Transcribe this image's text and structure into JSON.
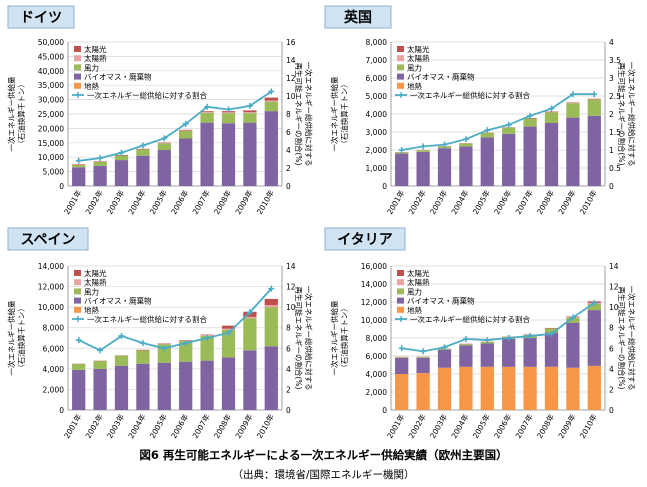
{
  "figure": {
    "title": "図6 再生可能エネルギーによる一次エネルギー供給実績（欧州主要国）",
    "source": "（出典：環境省/国際エネルギー機関）"
  },
  "colors": {
    "solar": "#c0504d",
    "solar_thermal": "#e6a5a3",
    "wind": "#9bbb59",
    "biomass": "#8064a2",
    "geothermal": "#f79646",
    "share_line": "#4bacc6",
    "grid": "#d9d9d9",
    "label_bg": "#d0e3f2"
  },
  "chart_data": [
    {
      "type": "bar",
      "title": "ドイツ",
      "ylabel": "一次エネルギー供給量\n（石油換算千トン）",
      "ylabel2": "一次エネルギー総供給に対する\n再生可能エネルギーの割合(%)",
      "categories": [
        "2001年",
        "2002年",
        "2003年",
        "2004年",
        "2005年",
        "2006年",
        "2007年",
        "2008年",
        "2009年",
        "2010年"
      ],
      "ylim": [
        0,
        50000
      ],
      "yticks": [
        0,
        5000,
        10000,
        15000,
        20000,
        25000,
        30000,
        35000,
        40000,
        45000,
        50000
      ],
      "y2lim": [
        0,
        16
      ],
      "y2ticks": [
        0,
        2,
        4,
        6,
        8,
        10,
        12,
        14,
        16
      ],
      "legend_position": "top-left",
      "series": [
        {
          "name": "地熱",
          "key": "geothermal",
          "values": [
            0,
            0,
            0,
            0,
            0,
            0,
            0,
            0,
            0,
            0
          ]
        },
        {
          "name": "バイオマス・廃棄物",
          "key": "biomass",
          "values": [
            6500,
            7000,
            9000,
            10500,
            12500,
            16500,
            22000,
            21800,
            22000,
            26000
          ]
        },
        {
          "name": "風力",
          "key": "wind",
          "values": [
            900,
            1400,
            1600,
            2200,
            2300,
            2600,
            3400,
            3500,
            3300,
            3300
          ]
        },
        {
          "name": "太陽熱",
          "key": "solar_thermal",
          "values": [
            100,
            120,
            140,
            160,
            180,
            200,
            250,
            300,
            350,
            400
          ]
        },
        {
          "name": "太陽光",
          "key": "solar",
          "values": [
            10,
            20,
            30,
            50,
            100,
            200,
            300,
            400,
            600,
            1000
          ]
        }
      ],
      "line": {
        "name": "一次エネルギー総供給に対する割合",
        "values": [
          2.8,
          3.1,
          3.7,
          4.5,
          5.3,
          6.9,
          8.8,
          8.5,
          8.9,
          10.5
        ]
      }
    },
    {
      "type": "bar",
      "title": "英国",
      "ylabel": "一次エネルギー供給量\n（石油換算千トン）",
      "ylabel2": "一次エネルギー総供給に対する\n再生可能エネルギーの割合(%)",
      "categories": [
        "2001年",
        "2002年",
        "2003年",
        "2004年",
        "2005年",
        "2006年",
        "2007年",
        "2008年",
        "2009年",
        "2010年"
      ],
      "ylim": [
        0,
        8000
      ],
      "yticks": [
        0,
        1000,
        2000,
        3000,
        4000,
        5000,
        6000,
        7000,
        8000
      ],
      "y2lim": [
        0,
        4
      ],
      "y2ticks": [
        0,
        0.5,
        1,
        1.5,
        2,
        2.5,
        3,
        3.5,
        4
      ],
      "legend_position": "top-left",
      "series": [
        {
          "name": "地熱",
          "key": "geothermal",
          "values": [
            0,
            0,
            0,
            0,
            0,
            0,
            0,
            0,
            0,
            0
          ]
        },
        {
          "name": "バイオマス・廃棄物",
          "key": "biomass",
          "values": [
            1800,
            1900,
            2100,
            2200,
            2700,
            2900,
            3300,
            3500,
            3800,
            3900
          ]
        },
        {
          "name": "風力",
          "key": "wind",
          "values": [
            80,
            100,
            110,
            170,
            250,
            350,
            450,
            600,
            800,
            900
          ]
        },
        {
          "name": "太陽熱",
          "key": "solar_thermal",
          "values": [
            10,
            10,
            10,
            15,
            20,
            20,
            25,
            30,
            35,
            40
          ]
        },
        {
          "name": "太陽光",
          "key": "solar",
          "values": [
            0,
            0,
            0,
            0,
            0,
            0,
            1,
            2,
            3,
            4
          ]
        }
      ],
      "line": {
        "name": "一次エネルギー総供給に対する割合",
        "values": [
          1.0,
          1.1,
          1.15,
          1.3,
          1.55,
          1.7,
          1.95,
          2.15,
          2.55,
          2.55
        ]
      }
    },
    {
      "type": "bar",
      "title": "スペイン",
      "ylabel": "一次エネルギー供給量\n（石油換算千トン）",
      "ylabel2": "一次エネルギー総供給に対する\n再生可能エネルギーの割合(%)",
      "categories": [
        "2001年",
        "2002年",
        "2003年",
        "2004年",
        "2005年",
        "2006年",
        "2007年",
        "2008年",
        "2009年",
        "2010年"
      ],
      "ylim": [
        0,
        14000
      ],
      "yticks": [
        0,
        2000,
        4000,
        6000,
        8000,
        10000,
        12000,
        14000
      ],
      "y2lim": [
        0,
        14
      ],
      "y2ticks": [
        0,
        2,
        4,
        6,
        8,
        10,
        12,
        14
      ],
      "legend_position": "top-left",
      "series": [
        {
          "name": "地熱",
          "key": "geothermal",
          "values": [
            0,
            0,
            0,
            0,
            0,
            0,
            0,
            0,
            0,
            0
          ]
        },
        {
          "name": "バイオマス・廃棄物",
          "key": "biomass",
          "values": [
            3900,
            4000,
            4300,
            4500,
            4600,
            4700,
            4800,
            5100,
            5800,
            6200
          ]
        },
        {
          "name": "風力",
          "key": "wind",
          "values": [
            600,
            800,
            1000,
            1300,
            1800,
            2000,
            2400,
            2700,
            3100,
            3800
          ]
        },
        {
          "name": "太陽熱",
          "key": "solar_thermal",
          "values": [
            20,
            20,
            30,
            40,
            50,
            60,
            80,
            100,
            150,
            200
          ]
        },
        {
          "name": "太陽光",
          "key": "solar",
          "values": [
            0,
            0,
            0,
            10,
            10,
            20,
            50,
            300,
            500,
            600
          ]
        }
      ],
      "line": {
        "name": "一次エネルギー総供給に対する割合",
        "values": [
          6.8,
          5.8,
          7.2,
          6.5,
          6.0,
          6.5,
          7.0,
          7.5,
          9.5,
          11.8
        ]
      }
    },
    {
      "type": "bar",
      "title": "イタリア",
      "ylabel": "一次エネルギー供給量\n（石油換算千トン）",
      "ylabel2": "一次エネルギー総供給に対する\n再生可能エネルギーの割合(%)",
      "categories": [
        "2001年",
        "2002年",
        "2003年",
        "2004年",
        "2005年",
        "2006年",
        "2007年",
        "2008年",
        "2009年",
        "2010年"
      ],
      "ylim": [
        0,
        16000
      ],
      "yticks": [
        0,
        2000,
        4000,
        6000,
        8000,
        10000,
        12000,
        14000,
        16000
      ],
      "y2lim": [
        0,
        14
      ],
      "y2ticks": [
        0,
        2,
        4,
        6,
        8,
        10,
        12,
        14
      ],
      "legend_position": "top-left",
      "series": [
        {
          "name": "地熱",
          "key": "geothermal",
          "values": [
            4000,
            4100,
            4700,
            4800,
            4800,
            4800,
            4800,
            4800,
            4700,
            4900
          ]
        },
        {
          "name": "バイオマス・廃棄物",
          "key": "biomass",
          "values": [
            1800,
            1700,
            2000,
            2400,
            2600,
            3100,
            3200,
            3800,
            5000,
            6200
          ]
        },
        {
          "name": "風力",
          "key": "wind",
          "values": [
            100,
            120,
            130,
            160,
            200,
            260,
            350,
            450,
            550,
            700
          ]
        },
        {
          "name": "太陽熱",
          "key": "solar_thermal",
          "values": [
            10,
            10,
            10,
            15,
            20,
            20,
            30,
            50,
            70,
            100
          ]
        },
        {
          "name": "太陽光",
          "key": "solar",
          "values": [
            0,
            0,
            0,
            0,
            0,
            0,
            10,
            20,
            70,
            170
          ]
        }
      ],
      "line": {
        "name": "一次エネルギー総供給に対する割合",
        "values": [
          6.0,
          5.7,
          6.1,
          6.9,
          6.8,
          7.0,
          7.2,
          7.4,
          9.0,
          10.4
        ]
      }
    }
  ]
}
